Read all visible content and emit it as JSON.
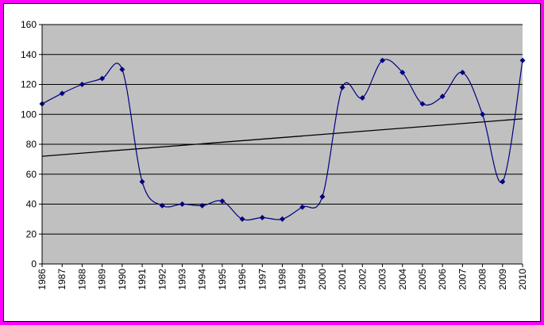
{
  "chart_data": {
    "type": "line",
    "title": "",
    "xlabel": "",
    "ylabel": "",
    "ylim": [
      0,
      160
    ],
    "yticks": [
      0,
      20,
      40,
      60,
      80,
      100,
      120,
      140,
      160
    ],
    "categories": [
      "1986",
      "1987",
      "1988",
      "1989",
      "1990",
      "1991",
      "1992",
      "1993",
      "1994",
      "1995",
      "1996",
      "1997",
      "1998",
      "1999",
      "2000",
      "2001",
      "2002",
      "2003",
      "2004",
      "2005",
      "2006",
      "2007",
      "2008",
      "2009",
      "2010"
    ],
    "series": [
      {
        "name": "",
        "values": [
          107,
          114,
          120,
          124,
          130,
          55,
          39,
          40,
          39,
          42,
          30,
          31,
          30,
          38,
          45,
          118,
          111,
          136,
          128,
          107,
          112,
          128,
          100,
          55,
          136
        ]
      }
    ],
    "trendline": {
      "start": 72,
      "end": 97
    },
    "grid": true,
    "legend": "none"
  },
  "colors": {
    "plot_background": "#c0c0c0",
    "series_line": "#000080",
    "trendline": "#000000",
    "gridline": "#000000",
    "page_border": "#ff00ff"
  }
}
